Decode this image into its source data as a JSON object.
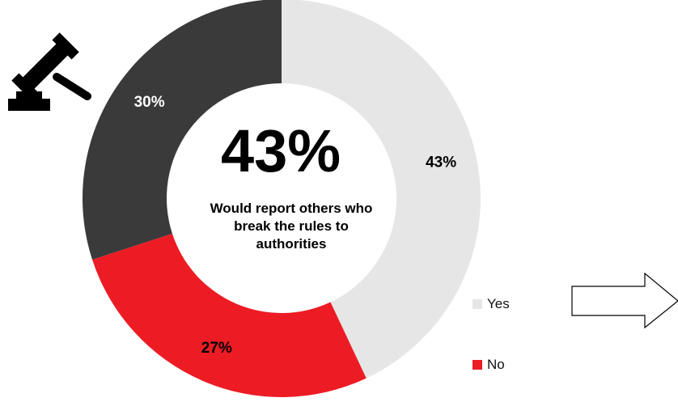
{
  "chart_data": {
    "type": "pie",
    "donut": true,
    "slices": [
      {
        "label": "Yes",
        "value": 43,
        "display": "43%",
        "color": "#e6e6e6",
        "text_color": "#000000"
      },
      {
        "label": "No",
        "value": 27,
        "display": "27%",
        "color": "#ed1c24",
        "text_color": "#000000"
      },
      {
        "label": "",
        "value": 30,
        "display": "30%",
        "color": "#3a3a3a",
        "text_color": "#ffffff"
      }
    ],
    "legend": [
      "Yes",
      "No"
    ],
    "legend_position": "right",
    "center": {
      "value": "43%",
      "caption_lines": [
        "Would report others who",
        "break the rules to",
        "authorities"
      ]
    }
  },
  "icons": {
    "gavel": "gavel-icon",
    "arrow": "right-arrow-icon"
  }
}
